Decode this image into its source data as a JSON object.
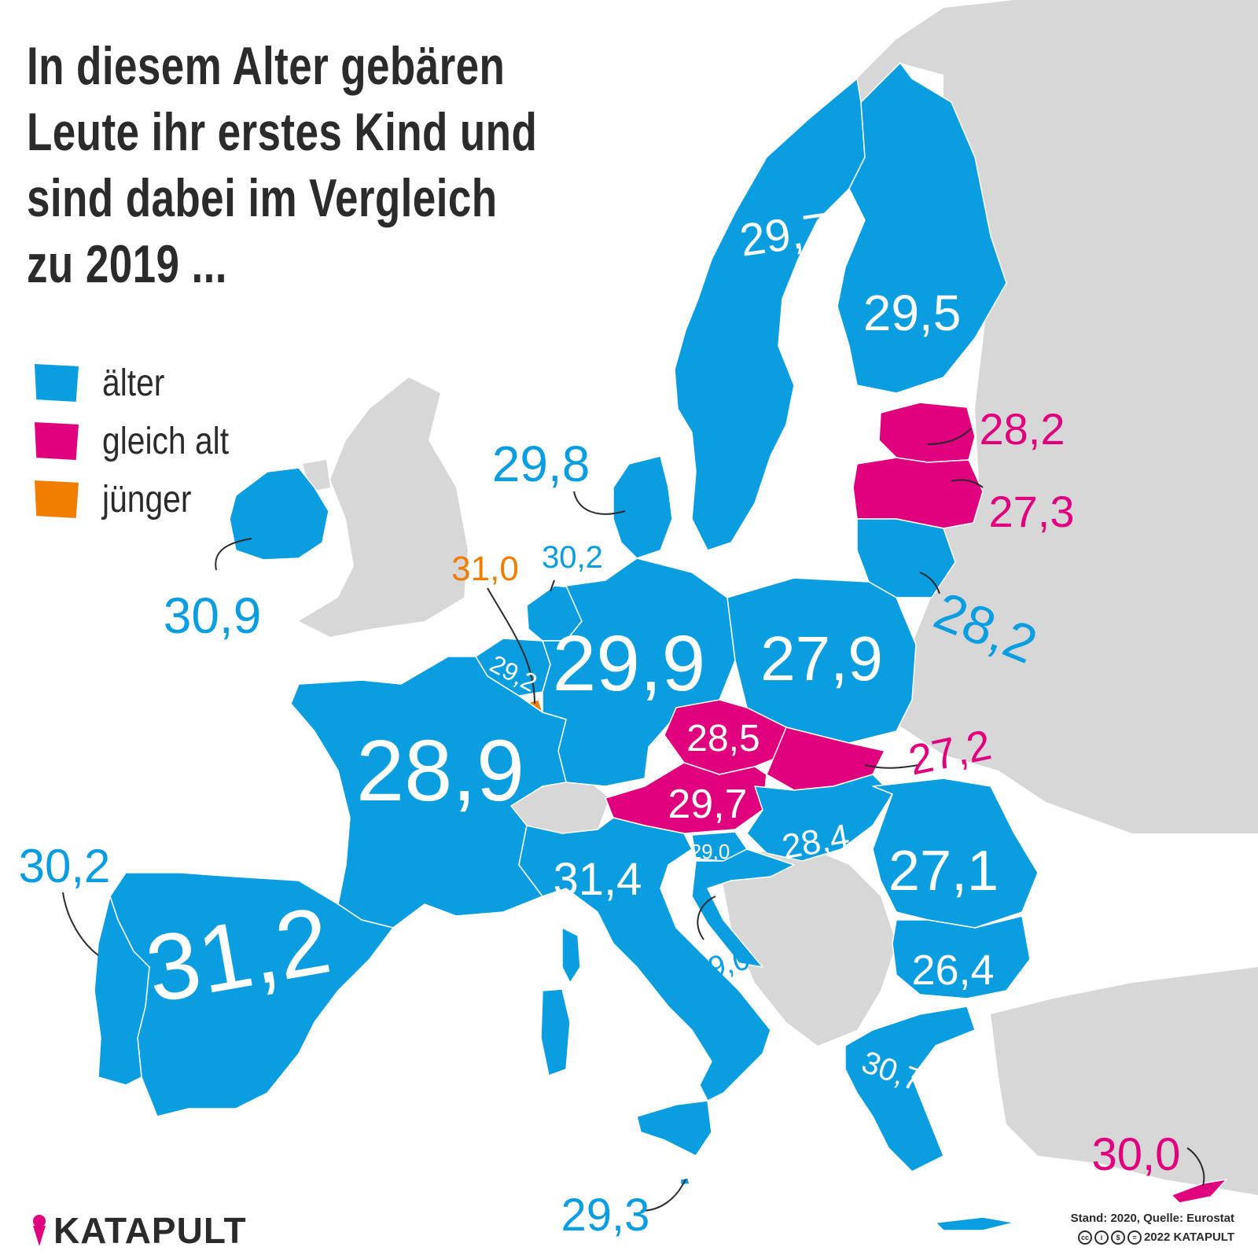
{
  "title_lines": [
    "In diesem Alter gebären",
    "Leute ihr erstes Kind und",
    "sind dabei im Vergleich",
    "zu 2019 ..."
  ],
  "colors": {
    "aelter": "#0a9de0",
    "gleich_alt": "#e0007e",
    "juenger": "#f07d00",
    "non_eu": "#d7d7d7",
    "sea": "#ffffff",
    "text": "#2b2b2b"
  },
  "legend": [
    {
      "label": "älter",
      "color": "#0a9de0"
    },
    {
      "label": "gleich alt",
      "color": "#e0007e"
    },
    {
      "label": "jünger",
      "color": "#f07d00"
    }
  ],
  "countries": [
    {
      "name": "Schweden",
      "value": "29,7",
      "category": "aelter"
    },
    {
      "name": "Finnland",
      "value": "29,5",
      "category": "aelter"
    },
    {
      "name": "Estland",
      "value": "28,2",
      "category": "gleich_alt"
    },
    {
      "name": "Lettland",
      "value": "27,3",
      "category": "gleich_alt"
    },
    {
      "name": "Litauen",
      "value": "28,2",
      "category": "aelter"
    },
    {
      "name": "Dänemark",
      "value": "29,8",
      "category": "aelter"
    },
    {
      "name": "Irland",
      "value": "30,9",
      "category": "aelter"
    },
    {
      "name": "Niederlande",
      "value": "30,2",
      "category": "aelter"
    },
    {
      "name": "Luxemburg",
      "value": "31,0",
      "category": "juenger"
    },
    {
      "name": "Belgien",
      "value": "29,2",
      "category": "aelter"
    },
    {
      "name": "Deutschland",
      "value": "29,9",
      "category": "aelter"
    },
    {
      "name": "Polen",
      "value": "27,9",
      "category": "aelter"
    },
    {
      "name": "Tschechien",
      "value": "28,5",
      "category": "gleich_alt"
    },
    {
      "name": "Slowakei",
      "value": "27,2",
      "category": "gleich_alt"
    },
    {
      "name": "Österreich",
      "value": "29,7",
      "category": "gleich_alt"
    },
    {
      "name": "Ungarn",
      "value": "28,4",
      "category": "aelter"
    },
    {
      "name": "Rumänien",
      "value": "27,1",
      "category": "aelter"
    },
    {
      "name": "Frankreich",
      "value": "28,9",
      "category": "aelter"
    },
    {
      "name": "Portugal",
      "value": "30,2",
      "category": "aelter"
    },
    {
      "name": "Spanien",
      "value": "31,2",
      "category": "aelter"
    },
    {
      "name": "Italien",
      "value": "31,4",
      "category": "aelter"
    },
    {
      "name": "Slowenien",
      "value": "29,0",
      "category": "aelter"
    },
    {
      "name": "Kroatien",
      "value": "29,0",
      "category": "aelter"
    },
    {
      "name": "Bulgarien",
      "value": "26,4",
      "category": "aelter"
    },
    {
      "name": "Griechenland",
      "value": "30,7",
      "category": "aelter"
    },
    {
      "name": "Malta",
      "value": "29,3",
      "category": "aelter"
    },
    {
      "name": "Zypern",
      "value": "30,0",
      "category": "gleich_alt"
    }
  ],
  "brand": {
    "name": "KATAPULT"
  },
  "footer": {
    "source": "Stand: 2020, Quelle: Eurostat",
    "copyright": "2022 KATAPULT",
    "license_icons": [
      "cc-icon",
      "by-icon",
      "nc-icon",
      "nd-icon"
    ]
  }
}
